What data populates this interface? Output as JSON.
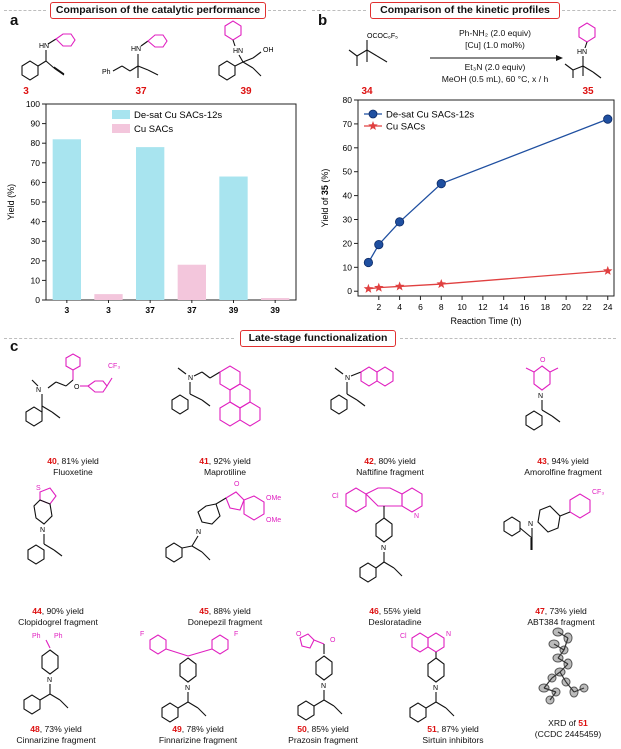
{
  "panel_a": {
    "letter": "a",
    "header": "Comparison of the catalytic performance",
    "compound_labels": [
      "3",
      "37",
      "39"
    ],
    "atom_labels": {
      "hn": "HN",
      "ph": "Ph",
      "oh": "OH"
    }
  },
  "panel_b": {
    "letter": "b",
    "header": "Comparison of the kinetic profiles",
    "reactant_label": "34",
    "product_label": "35",
    "reactant_group": "OCOC₆F₅",
    "conditions": [
      "Ph-NH₂ (2.0 equiv)",
      "[Cu] (1.0 mol%)",
      "Et₃N (2.0 equiv)",
      "MeOH (0.5 mL), 60 °C, x / h"
    ],
    "hn": "HN"
  },
  "panel_c": {
    "letter": "c",
    "header": "Late-stage functionalization",
    "items": [
      {
        "num": "40",
        "yield": ", 81% yield",
        "name": "Fluoxetine"
      },
      {
        "num": "41",
        "yield": ", 92% yield",
        "name": "Maprotiline"
      },
      {
        "num": "42",
        "yield": ", 80% yield",
        "name": "Naftifine fragment"
      },
      {
        "num": "43",
        "yield": ", 94% yield",
        "name": "Amorolfine fragment"
      },
      {
        "num": "44",
        "yield": ", 90% yield",
        "name": "Clopidogrel fragment"
      },
      {
        "num": "45",
        "yield": ", 88% yield",
        "name": "Donepezil fragment"
      },
      {
        "num": "46",
        "yield": ", 55% yield",
        "name": "Desloratadine"
      },
      {
        "num": "47",
        "yield": ", 73% yield",
        "name": "ABT384 fragment"
      },
      {
        "num": "48",
        "yield": ", 73% yield",
        "name": "Cinnarizine fragment"
      },
      {
        "num": "49",
        "yield": ", 78% yield",
        "name": "Finnarizine fragment"
      },
      {
        "num": "50",
        "yield": ", 85% yield",
        "name": "Prazosin fragment"
      },
      {
        "num": "51",
        "yield": ", 87% yield",
        "name": "Sirtuin inhibitors"
      }
    ],
    "xrd": {
      "line1_prefix": "XRD of ",
      "line1_num": "51",
      "line2": "(CCDC 2445459)"
    },
    "atom_labels": {
      "n": "N",
      "o": "O",
      "cf3": "CF₃",
      "ome": "OMe",
      "cl": "Cl",
      "f": "F",
      "s": "S",
      "ph": "Ph"
    }
  },
  "chart_data": [
    {
      "type": "bar",
      "categories": [
        "3",
        "3",
        "37",
        "37",
        "39",
        "39"
      ],
      "series": [
        {
          "name": "De-sat Cu SACs-12s",
          "color": "#a8e4ef",
          "values": [
            82,
            null,
            78,
            null,
            63,
            null
          ]
        },
        {
          "name": "Cu SACs",
          "color": "#f3c6dc",
          "values": [
            null,
            3,
            null,
            18,
            null,
            1
          ]
        }
      ],
      "ylabel": "Yield (%)",
      "ylim": [
        0,
        100
      ],
      "yticks": [
        0,
        10,
        20,
        30,
        40,
        50,
        60,
        70,
        80,
        90,
        100
      ],
      "legend": "top-right"
    },
    {
      "type": "line",
      "series": [
        {
          "name": "De-sat Cu SACs-12s",
          "color": "#1f4fa0",
          "marker": "circle",
          "x": [
            1,
            2,
            4,
            8,
            24
          ],
          "y": [
            12,
            19.5,
            29,
            45,
            72
          ]
        },
        {
          "name": "Cu SACs",
          "color": "#e04040",
          "marker": "star",
          "x": [
            1,
            2,
            4,
            8,
            24
          ],
          "y": [
            1,
            1.5,
            2,
            3,
            8.5
          ]
        }
      ],
      "xlabel": "Reaction Time (h)",
      "ylabel_prefix": "Yield of ",
      "ylabel_num": "35",
      "ylabel_suffix": " (%)",
      "xlim": [
        0,
        24.6
      ],
      "ylim": [
        -2,
        80
      ],
      "xticks": [
        2,
        4,
        6,
        8,
        10,
        12,
        14,
        16,
        18,
        20,
        22,
        24
      ],
      "yticks": [
        0,
        10,
        20,
        30,
        40,
        50,
        60,
        70,
        80
      ],
      "legend": "top-left"
    }
  ]
}
